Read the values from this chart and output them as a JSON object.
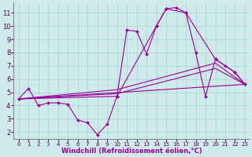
{
  "bg_color": "#ceeaea",
  "grid_color": "#aacfcf",
  "line_color": "#990099",
  "marker": "D",
  "markersize": 2,
  "linewidth": 0.8,
  "xlim": [
    -0.5,
    23.5
  ],
  "ylim": [
    1.5,
    11.8
  ],
  "xticks": [
    0,
    1,
    2,
    3,
    4,
    5,
    6,
    7,
    8,
    9,
    10,
    11,
    12,
    13,
    14,
    15,
    16,
    17,
    18,
    19,
    20,
    21,
    22,
    23
  ],
  "yticks": [
    2,
    3,
    4,
    5,
    6,
    7,
    8,
    9,
    10,
    11
  ],
  "xlabel": "Windchill (Refroidissement éolien,°C)",
  "xlabel_fontsize": 6,
  "tick_fontsize": 6,
  "series1_x": [
    0,
    1,
    2,
    3,
    4,
    5,
    6,
    7,
    8,
    9,
    10,
    11,
    12,
    13,
    14,
    15,
    16,
    17,
    18,
    19,
    20,
    21,
    22,
    23
  ],
  "series1_y": [
    4.5,
    5.3,
    4.0,
    4.2,
    4.2,
    4.1,
    2.9,
    2.7,
    1.8,
    2.6,
    4.7,
    9.7,
    9.6,
    7.9,
    10.0,
    11.3,
    11.4,
    11.0,
    8.0,
    4.7,
    7.5,
    7.0,
    6.5,
    5.6
  ],
  "series2_x": [
    0,
    10,
    14,
    15,
    17,
    20,
    22,
    23
  ],
  "series2_y": [
    4.5,
    4.7,
    10.0,
    11.3,
    11.0,
    7.5,
    6.5,
    5.6
  ],
  "series3_x": [
    0,
    23
  ],
  "series3_y": [
    4.5,
    5.6
  ],
  "series4_x": [
    0,
    10,
    20,
    23
  ],
  "series4_y": [
    4.5,
    5.2,
    7.2,
    5.6
  ],
  "series5_x": [
    0,
    10,
    20,
    23
  ],
  "series5_y": [
    4.5,
    4.9,
    6.8,
    5.6
  ]
}
